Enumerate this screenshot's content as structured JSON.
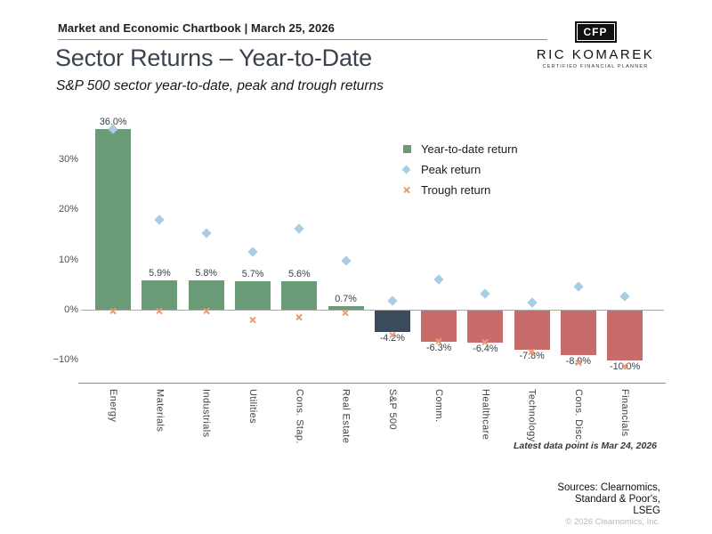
{
  "header": {
    "kicker": "Market and Economic Chartbook | March 25, 2026"
  },
  "logo": {
    "mark": "CFP",
    "name": "RIC KOMAREK",
    "tagline": "CERTIFIED FINANCIAL PLANNER"
  },
  "title": "Sector Returns – Year-to-Date",
  "subtitle": "S&P 500 sector year-to-date, peak and trough returns",
  "footnote": "Latest data point is Mar 24, 2026",
  "footer": {
    "sources": [
      "Sources: Clearnomics,",
      "Standard & Poor's,",
      "LSEG"
    ],
    "copyright": "© 2026 Clearnomics, Inc."
  },
  "legend": [
    {
      "label": "Year-to-date return",
      "marker": "square",
      "color": "#6a9b77"
    },
    {
      "label": "Peak return",
      "marker": "diamond",
      "color": "#a7cee2"
    },
    {
      "label": "Trough return",
      "marker": "x",
      "color": "#e89b76"
    }
  ],
  "chart_data": {
    "type": "bar",
    "title": "Sector Returns – Year-to-Date",
    "subtitle": "S&P 500 sector year-to-date, peak and trough returns",
    "categories": [
      "Energy",
      "Materials",
      "Industrials",
      "Utilities",
      "Cons. Stap.",
      "Real Estate",
      "S&P 500",
      "Comm.",
      "Healthcare",
      "Technology",
      "Cons. Disc.",
      "Financials"
    ],
    "series": [
      {
        "name": "Year-to-date return",
        "type": "bar",
        "values": [
          36.0,
          5.9,
          5.8,
          5.7,
          5.6,
          0.7,
          -4.2,
          -6.3,
          -6.4,
          -7.8,
          -8.9,
          -10.0
        ],
        "labels": [
          "36.0%",
          "5.9%",
          "5.8%",
          "5.7%",
          "5.6%",
          "0.7%",
          "-4.2%",
          "-6.3%",
          "-6.4%",
          "-7.8%",
          "-8.9%",
          "-10.0%"
        ],
        "colors": [
          "#6a9b77",
          "#6a9b77",
          "#6a9b77",
          "#6a9b77",
          "#6a9b77",
          "#6a9b77",
          "#3b4b5c",
          "#c96b6b",
          "#c96b6b",
          "#c96b6b",
          "#c96b6b",
          "#c96b6b"
        ]
      },
      {
        "name": "Peak return",
        "type": "point-diamond",
        "color": "#a7cee2",
        "values": [
          36.0,
          18.0,
          15.3,
          11.5,
          16.2,
          9.7,
          1.8,
          6.0,
          3.2,
          1.5,
          4.6,
          2.6
        ]
      },
      {
        "name": "Trough return",
        "type": "point-x",
        "color": "#e89b76",
        "values": [
          -0.2,
          -0.2,
          -0.2,
          -2.1,
          -1.5,
          -0.6,
          -5.0,
          -6.3,
          -6.5,
          -8.5,
          -10.5,
          -11.2
        ]
      }
    ],
    "yticks": [
      {
        "label": "30%",
        "value": 30
      },
      {
        "label": "20%",
        "value": 20
      },
      {
        "label": "10%",
        "value": 10
      },
      {
        "label": "0%",
        "value": 0
      },
      {
        "label": "−10%",
        "value": -10
      }
    ],
    "ylim": [
      -15,
      39
    ],
    "grid": false,
    "legend_position": "inside-upper-right"
  }
}
